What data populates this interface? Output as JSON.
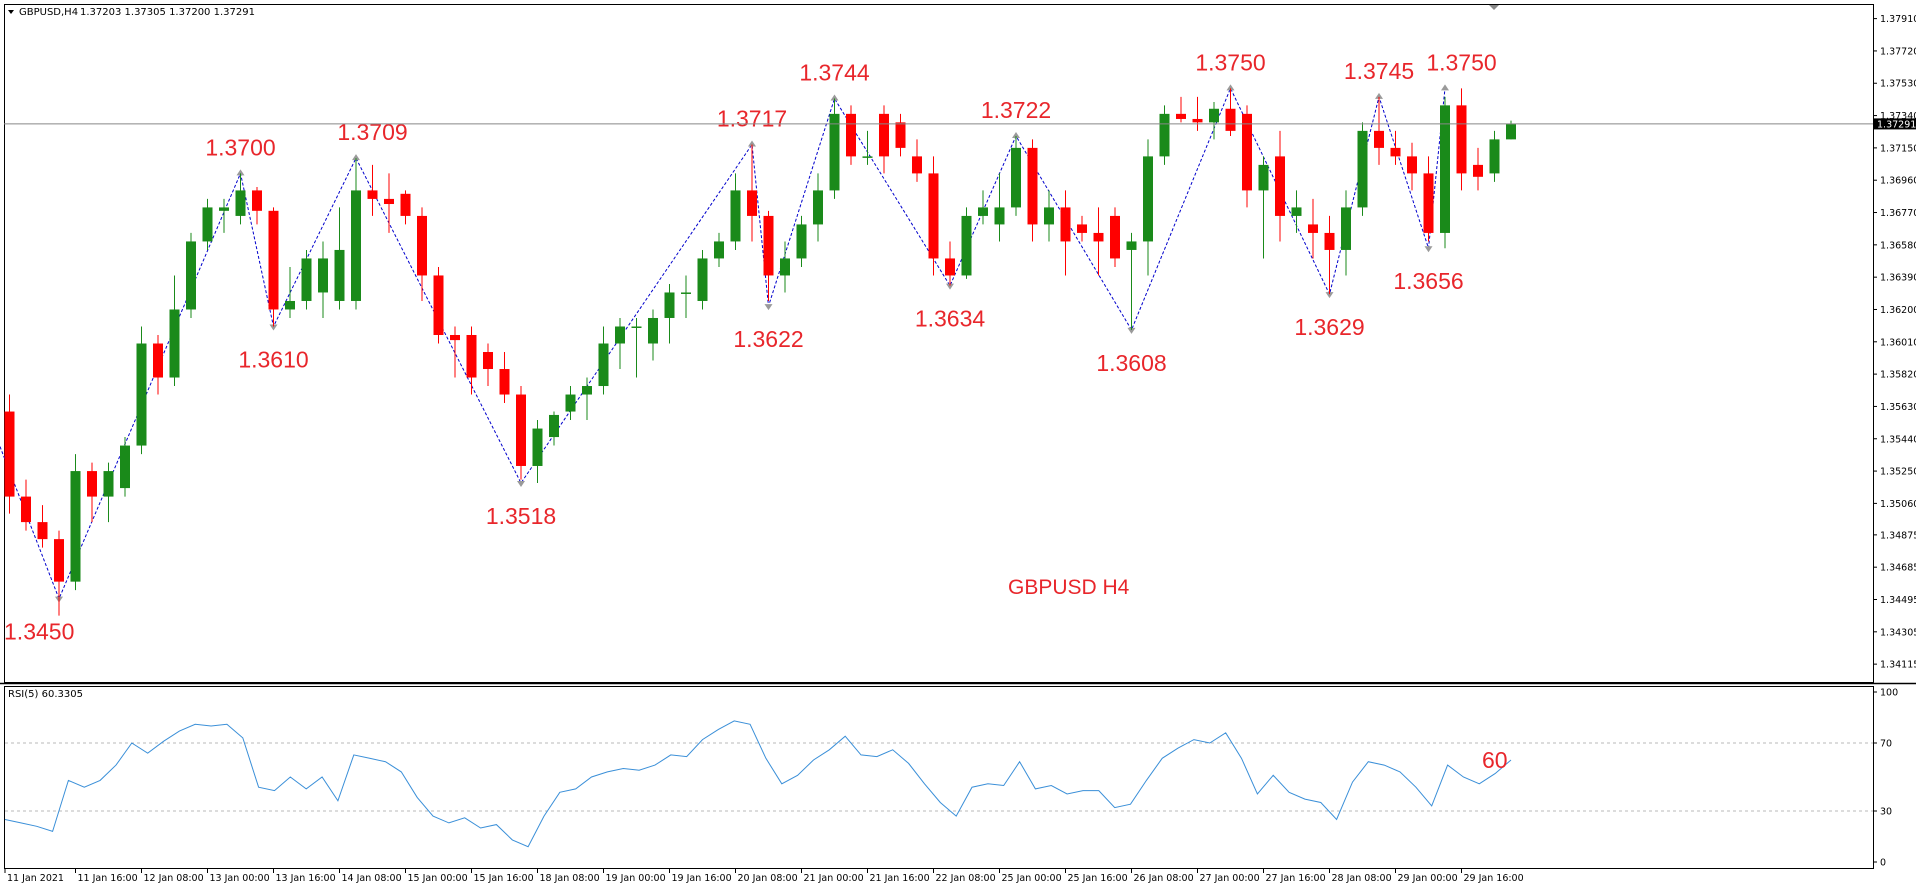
{
  "header": {
    "symbol_tf": "GBPUSD,H4",
    "ohlc": "1.37203 1.37305 1.37200 1.37291",
    "rsi_label": "RSI(5) 60.3305"
  },
  "chart_data": {
    "type": "candlestick",
    "title": "GBPUSD  H4",
    "colors": {
      "up": "#1a8a1a",
      "down": "#ff0000",
      "zigzag": "#0000cc",
      "rsi": "#3a8fd8",
      "annotation": "#e8262b"
    },
    "price_axis": {
      "ylim": [
        1.3401,
        1.3799
      ],
      "ticks": [
        "1.37910",
        "1.37720",
        "1.37530",
        "1.37340",
        "1.37150",
        "1.36960",
        "1.36770",
        "1.36580",
        "1.36390",
        "1.36200",
        "1.36010",
        "1.35820",
        "1.35630",
        "1.35440",
        "1.35250",
        "1.35060",
        "1.34875",
        "1.34685",
        "1.34495",
        "1.34305",
        "1.34115"
      ],
      "current_price": "1.37291"
    },
    "time_axis": {
      "labels": [
        "11 Jan 2021",
        "11 Jan 16:00",
        "12 Jan 08:00",
        "13 Jan 00:00",
        "13 Jan 16:00",
        "14 Jan 08:00",
        "15 Jan 00:00",
        "15 Jan 16:00",
        "18 Jan 08:00",
        "19 Jan 00:00",
        "19 Jan 16:00",
        "20 Jan 08:00",
        "21 Jan 00:00",
        "21 Jan 16:00",
        "22 Jan 08:00",
        "25 Jan 00:00",
        "25 Jan 16:00",
        "26 Jan 08:00",
        "27 Jan 00:00",
        "27 Jan 16:00",
        "28 Jan 08:00",
        "29 Jan 00:00",
        "29 Jan 16:00"
      ],
      "label_bar_index": [
        0,
        4,
        8,
        12,
        16,
        20,
        24,
        28,
        32,
        36,
        40,
        44,
        48,
        52,
        56,
        60,
        64,
        68,
        72,
        76,
        80,
        84,
        88
      ]
    },
    "candles": [
      [
        1.356,
        1.357,
        1.35,
        1.351
      ],
      [
        1.351,
        1.352,
        1.349,
        1.3495
      ],
      [
        1.3495,
        1.3505,
        1.348,
        1.3485
      ],
      [
        1.3485,
        1.349,
        1.344,
        1.346
      ],
      [
        1.346,
        1.3535,
        1.3455,
        1.3525
      ],
      [
        1.3525,
        1.353,
        1.3495,
        1.351
      ],
      [
        1.351,
        1.353,
        1.3495,
        1.3525
      ],
      [
        1.3515,
        1.3545,
        1.351,
        1.354
      ],
      [
        1.354,
        1.361,
        1.3535,
        1.36
      ],
      [
        1.36,
        1.3605,
        1.357,
        1.358
      ],
      [
        1.358,
        1.364,
        1.3575,
        1.362
      ],
      [
        1.362,
        1.3665,
        1.3615,
        1.366
      ],
      [
        1.366,
        1.3685,
        1.3655,
        1.368
      ],
      [
        1.3678,
        1.3685,
        1.3665,
        1.368
      ],
      [
        1.3675,
        1.37,
        1.367,
        1.369
      ],
      [
        1.369,
        1.3692,
        1.367,
        1.3678
      ],
      [
        1.3678,
        1.368,
        1.361,
        1.362
      ],
      [
        1.362,
        1.3645,
        1.3615,
        1.3625
      ],
      [
        1.3625,
        1.3655,
        1.362,
        1.365
      ],
      [
        1.363,
        1.366,
        1.3615,
        1.365
      ],
      [
        1.3625,
        1.368,
        1.362,
        1.3655
      ],
      [
        1.3625,
        1.3709,
        1.362,
        1.369
      ],
      [
        1.369,
        1.3705,
        1.3675,
        1.3685
      ],
      [
        1.3685,
        1.37,
        1.3665,
        1.3682
      ],
      [
        1.3688,
        1.369,
        1.367,
        1.3675
      ],
      [
        1.3675,
        1.368,
        1.3625,
        1.364
      ],
      [
        1.364,
        1.3645,
        1.36,
        1.3605
      ],
      [
        1.3605,
        1.361,
        1.358,
        1.3602
      ],
      [
        1.3605,
        1.361,
        1.357,
        1.358
      ],
      [
        1.3595,
        1.36,
        1.3575,
        1.3585
      ],
      [
        1.3585,
        1.3595,
        1.3565,
        1.357
      ],
      [
        1.357,
        1.3575,
        1.352,
        1.3528
      ],
      [
        1.3528,
        1.3555,
        1.3518,
        1.355
      ],
      [
        1.3545,
        1.356,
        1.354,
        1.3558
      ],
      [
        1.356,
        1.3575,
        1.3555,
        1.357
      ],
      [
        1.357,
        1.358,
        1.3555,
        1.3575
      ],
      [
        1.3575,
        1.361,
        1.357,
        1.36
      ],
      [
        1.36,
        1.3615,
        1.3585,
        1.361
      ],
      [
        1.361,
        1.3615,
        1.358,
        1.361
      ],
      [
        1.36,
        1.362,
        1.359,
        1.3615
      ],
      [
        1.3615,
        1.3635,
        1.36,
        1.363
      ],
      [
        1.363,
        1.364,
        1.3615,
        1.363
      ],
      [
        1.3625,
        1.3655,
        1.362,
        1.365
      ],
      [
        1.365,
        1.3665,
        1.3645,
        1.366
      ],
      [
        1.366,
        1.37,
        1.3655,
        1.369
      ],
      [
        1.369,
        1.3717,
        1.366,
        1.3675
      ],
      [
        1.3675,
        1.3678,
        1.3625,
        1.364
      ],
      [
        1.364,
        1.366,
        1.363,
        1.365
      ],
      [
        1.365,
        1.3675,
        1.3645,
        1.367
      ],
      [
        1.367,
        1.37,
        1.366,
        1.369
      ],
      [
        1.369,
        1.3744,
        1.3685,
        1.3735
      ],
      [
        1.3735,
        1.374,
        1.3705,
        1.371
      ],
      [
        1.371,
        1.3725,
        1.3705,
        1.371
      ],
      [
        1.3735,
        1.374,
        1.37,
        1.371
      ],
      [
        1.373,
        1.3735,
        1.371,
        1.3715
      ],
      [
        1.371,
        1.372,
        1.3695,
        1.37
      ],
      [
        1.37,
        1.371,
        1.364,
        1.365
      ],
      [
        1.365,
        1.366,
        1.3634,
        1.364
      ],
      [
        1.364,
        1.368,
        1.3638,
        1.3675
      ],
      [
        1.3675,
        1.369,
        1.367,
        1.368
      ],
      [
        1.367,
        1.37,
        1.366,
        1.368
      ],
      [
        1.368,
        1.3722,
        1.3675,
        1.3715
      ],
      [
        1.3715,
        1.372,
        1.366,
        1.367
      ],
      [
        1.367,
        1.369,
        1.366,
        1.368
      ],
      [
        1.368,
        1.369,
        1.364,
        1.366
      ],
      [
        1.367,
        1.3675,
        1.366,
        1.3665
      ],
      [
        1.3665,
        1.368,
        1.364,
        1.366
      ],
      [
        1.3675,
        1.368,
        1.3645,
        1.365
      ],
      [
        1.3655,
        1.3665,
        1.3608,
        1.366
      ],
      [
        1.366,
        1.372,
        1.364,
        1.371
      ],
      [
        1.371,
        1.374,
        1.3705,
        1.3735
      ],
      [
        1.3735,
        1.3745,
        1.373,
        1.3732
      ],
      [
        1.3732,
        1.3745,
        1.3725,
        1.373
      ],
      [
        1.373,
        1.3742,
        1.372,
        1.3738
      ],
      [
        1.3738,
        1.375,
        1.3722,
        1.3725
      ],
      [
        1.3735,
        1.374,
        1.368,
        1.369
      ],
      [
        1.369,
        1.371,
        1.365,
        1.3705
      ],
      [
        1.371,
        1.3725,
        1.366,
        1.3675
      ],
      [
        1.3675,
        1.369,
        1.3665,
        1.368
      ],
      [
        1.367,
        1.3685,
        1.365,
        1.3665
      ],
      [
        1.3665,
        1.3675,
        1.3629,
        1.3655
      ],
      [
        1.3655,
        1.369,
        1.364,
        1.368
      ],
      [
        1.368,
        1.373,
        1.3675,
        1.3725
      ],
      [
        1.3725,
        1.3745,
        1.3705,
        1.3715
      ],
      [
        1.3715,
        1.3725,
        1.3705,
        1.371
      ],
      [
        1.371,
        1.3718,
        1.369,
        1.37
      ],
      [
        1.37,
        1.371,
        1.366,
        1.3665
      ],
      [
        1.3665,
        1.3745,
        1.3656,
        1.374
      ],
      [
        1.374,
        1.375,
        1.369,
        1.37
      ],
      [
        1.3705,
        1.3715,
        1.369,
        1.3698
      ],
      [
        1.37,
        1.3725,
        1.3695,
        1.372
      ],
      [
        1.372,
        1.3731,
        1.372,
        1.3729
      ]
    ],
    "zigzag": [
      [
        -2,
        1.3575
      ],
      [
        3,
        1.345
      ],
      [
        14,
        1.37
      ],
      [
        16,
        1.361
      ],
      [
        21,
        1.3709
      ],
      [
        31,
        1.3518
      ],
      [
        45,
        1.3717
      ],
      [
        46,
        1.3622
      ],
      [
        50,
        1.3744
      ],
      [
        57,
        1.3634
      ],
      [
        61,
        1.3722
      ],
      [
        68,
        1.3608
      ],
      [
        74,
        1.375
      ],
      [
        80,
        1.3629
      ],
      [
        83,
        1.3745
      ],
      [
        86,
        1.3656
      ],
      [
        87,
        1.375
      ]
    ],
    "annotations": [
      {
        "text": "1.3450",
        "bar": 1.8,
        "price": 1.345,
        "pos": "below"
      },
      {
        "text": "1.3700",
        "bar": 14,
        "price": 1.37,
        "pos": "above"
      },
      {
        "text": "1.3610",
        "bar": 16,
        "price": 1.361,
        "pos": "below"
      },
      {
        "text": "1.3709",
        "bar": 22,
        "price": 1.3709,
        "pos": "above"
      },
      {
        "text": "1.3518",
        "bar": 31,
        "price": 1.3518,
        "pos": "below"
      },
      {
        "text": "1.3717",
        "bar": 45,
        "price": 1.3717,
        "pos": "above"
      },
      {
        "text": "1.3622",
        "bar": 46,
        "price": 1.3622,
        "pos": "below"
      },
      {
        "text": "1.3744",
        "bar": 50,
        "price": 1.3744,
        "pos": "above"
      },
      {
        "text": "1.3634",
        "bar": 57,
        "price": 1.3634,
        "pos": "below"
      },
      {
        "text": "1.3722",
        "bar": 61,
        "price": 1.3722,
        "pos": "above"
      },
      {
        "text": "1.3608",
        "bar": 68,
        "price": 1.3608,
        "pos": "below"
      },
      {
        "text": "1.3750",
        "bar": 74,
        "price": 1.375,
        "pos": "above"
      },
      {
        "text": "1.3629",
        "bar": 80,
        "price": 1.3629,
        "pos": "below"
      },
      {
        "text": "1.3745",
        "bar": 83,
        "price": 1.3745,
        "pos": "above"
      },
      {
        "text": "1.3656",
        "bar": 86,
        "price": 1.3656,
        "pos": "below"
      },
      {
        "text": "1.3750",
        "bar": 88,
        "price": 1.375,
        "pos": "above"
      }
    ],
    "rsi": {
      "ylim": [
        0,
        100
      ],
      "ticks": [
        "100",
        "70",
        "30",
        "0"
      ],
      "levels": [
        70,
        30
      ],
      "last_label": "60",
      "values": [
        25,
        23,
        21,
        18,
        48,
        44,
        48,
        57,
        70,
        64,
        71,
        77,
        81,
        80,
        81,
        73,
        44,
        42,
        50,
        43,
        50,
        36,
        63,
        61,
        59,
        53,
        38,
        27,
        23,
        26,
        20,
        22,
        13,
        9,
        27,
        41,
        43,
        50,
        53,
        55,
        54,
        57,
        63,
        62,
        72,
        78,
        83,
        81,
        61,
        46,
        51,
        60,
        66,
        74,
        63,
        62,
        66,
        58,
        46,
        35,
        27,
        44,
        46,
        45,
        59,
        43,
        45,
        40,
        42,
        42,
        32,
        34,
        48,
        61,
        67,
        72,
        70,
        76,
        61,
        40,
        51,
        41,
        37,
        35,
        25,
        47,
        59,
        57,
        53,
        44,
        33,
        57,
        50,
        46,
        52,
        60
      ]
    }
  }
}
